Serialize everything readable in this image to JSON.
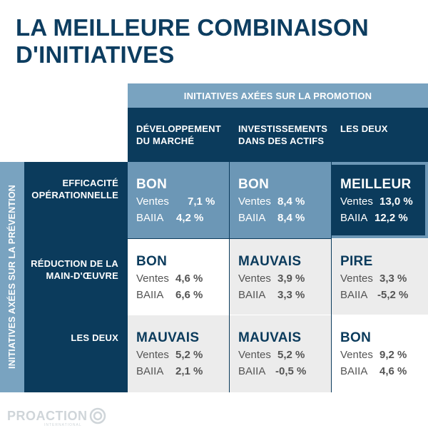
{
  "title_line1": "LA MEILLEURE COMBINAISON",
  "title_line2": "D'INITIATIVES",
  "top_header": "INITIATIVES AXÉES SUR LA PROMOTION",
  "side_header": "INITIATIVES AXÉES SUR LA PRÉVENTION",
  "columns": [
    {
      "line1": "DÉVELOPPEMENT",
      "line2": "DU MARCHÉ"
    },
    {
      "line1": "INVESTISSEMENTS",
      "line2": "DANS DES ACTIFS"
    },
    {
      "line1": "LES DEUX",
      "line2": ""
    }
  ],
  "rows": [
    {
      "line1": "EFFICACITÉ",
      "line2": "OPÉRATIONNELLE"
    },
    {
      "line1": "RÉDUCTION DE LA",
      "line2": "MAIN-D'ŒUVRE"
    },
    {
      "line1": "LES DEUX",
      "line2": ""
    }
  ],
  "metric_labels": {
    "sales": "Ventes",
    "ebitda": "BAIIA"
  },
  "cells": [
    [
      {
        "verdict": "BON",
        "sales": "7,1 %",
        "ebitda": "4,2 %"
      },
      {
        "verdict": "BON",
        "sales": "8,4 %",
        "ebitda": "8,4 %"
      },
      {
        "verdict": "MEILLEUR",
        "sales": "13,0 %",
        "ebitda": "12,2 %"
      }
    ],
    [
      {
        "verdict": "BON",
        "sales": "4,6 %",
        "ebitda": "6,6 %"
      },
      {
        "verdict": "MAUVAIS",
        "sales": "3,9 %",
        "ebitda": "3,3 %"
      },
      {
        "verdict": "PIRE",
        "sales": "3,3 %",
        "ebitda": "-5,2 %"
      }
    ],
    [
      {
        "verdict": "MAUVAIS",
        "sales": "5,2 %",
        "ebitda": "2,1 %"
      },
      {
        "verdict": "MAUVAIS",
        "sales": "5,2 %",
        "ebitda": "-0,5 %"
      },
      {
        "verdict": "BON",
        "sales": "9,2 %",
        "ebitda": "4,6 %"
      }
    ]
  ],
  "logo": {
    "name": "PROACTION",
    "sub": "INTERNATIONAL"
  },
  "colors": {
    "navy": "#0b3b5c",
    "steel_blue": "#6c97b6",
    "light_blue": "#79a3c0",
    "gray": "#ececec"
  }
}
